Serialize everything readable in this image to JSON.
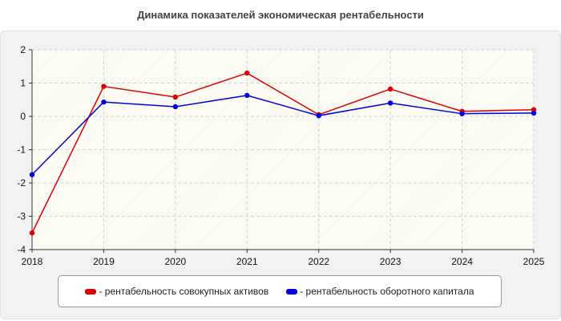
{
  "chart_data": {
    "type": "line",
    "title": "Динамика показателей экономическая рентабельности",
    "xlabel": "",
    "ylabel": "",
    "x": [
      "2018",
      "2019",
      "2020",
      "2021",
      "2022",
      "2023",
      "2024",
      "2025"
    ],
    "ylim": [
      -4,
      2
    ],
    "yticks": [
      "2",
      "1",
      "0",
      "-1",
      "-2",
      "-3",
      "-4"
    ],
    "grid": true,
    "legend_position": "bottom",
    "series": [
      {
        "name": "- рентабельность совокупных активов",
        "color": "#e00000",
        "values": [
          -3.5,
          0.9,
          0.58,
          1.3,
          0.05,
          0.82,
          0.15,
          0.2
        ]
      },
      {
        "name": "- рентабельность оборотного капитала",
        "color": "#0000e0",
        "values": [
          -1.75,
          0.43,
          0.29,
          0.63,
          0.02,
          0.4,
          0.08,
          0.1
        ]
      }
    ]
  }
}
